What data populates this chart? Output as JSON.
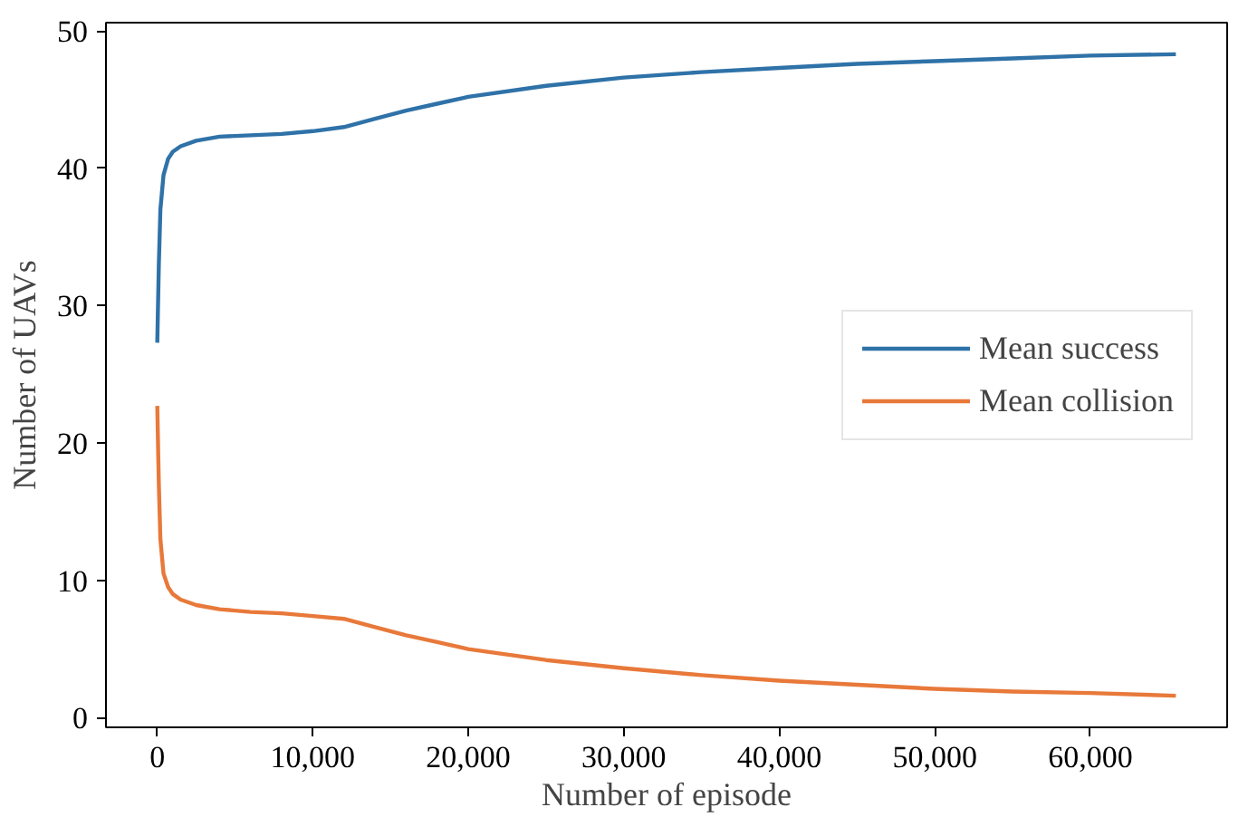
{
  "chart_data": {
    "type": "line",
    "xlabel": "Number of episode",
    "ylabel": "Number of UAVs",
    "xlim": [
      -3300,
      68800
    ],
    "ylim": [
      -0.7,
      50.6
    ],
    "xticks": [
      {
        "value": 0,
        "label": "0"
      },
      {
        "value": 10000,
        "label": "10,000"
      },
      {
        "value": 20000,
        "label": "20,000"
      },
      {
        "value": 30000,
        "label": "30,000"
      },
      {
        "value": 40000,
        "label": "40,000"
      },
      {
        "value": 50000,
        "label": "50,000"
      },
      {
        "value": 60000,
        "label": "60,000"
      }
    ],
    "yticks": [
      0,
      10,
      20,
      30,
      40,
      50
    ],
    "grid": false,
    "legend": "right",
    "marker": "none",
    "line_style": "solid",
    "x": [
      0,
      100,
      200,
      400,
      700,
      1000,
      1500,
      2500,
      4000,
      6000,
      8000,
      10000,
      12000,
      14000,
      16000,
      18000,
      20000,
      25000,
      30000,
      35000,
      40000,
      45000,
      50000,
      55000,
      60000,
      65500
    ],
    "series": [
      {
        "name": "Mean success",
        "color": "#2f72a8",
        "values": [
          27.3,
          33,
          37,
          39.5,
          40.7,
          41.2,
          41.6,
          42.0,
          42.3,
          42.4,
          42.5,
          42.7,
          43.0,
          43.6,
          44.2,
          44.7,
          45.2,
          46.0,
          46.6,
          47.0,
          47.3,
          47.6,
          47.8,
          48.0,
          48.2,
          48.3
        ]
      },
      {
        "name": "Mean collision",
        "color": "#e8793a",
        "values": [
          22.7,
          17,
          13,
          10.5,
          9.5,
          9.0,
          8.6,
          8.2,
          7.9,
          7.7,
          7.6,
          7.4,
          7.2,
          6.6,
          6.0,
          5.5,
          5.0,
          4.2,
          3.6,
          3.1,
          2.7,
          2.4,
          2.1,
          1.9,
          1.8,
          1.6
        ]
      }
    ]
  }
}
